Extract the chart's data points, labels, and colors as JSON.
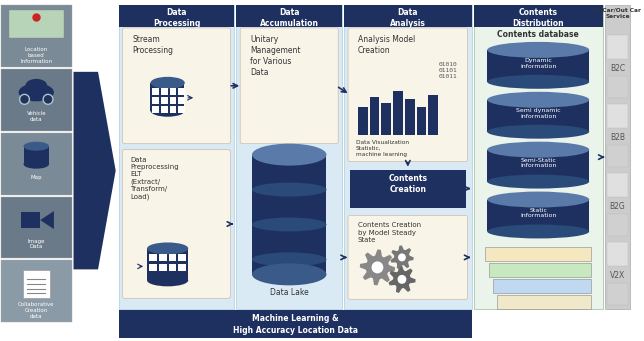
{
  "fig_width": 6.44,
  "fig_height": 3.41,
  "bg_color": "#ffffff",
  "navy": "#1e3060",
  "light_blue": "#daeaf5",
  "light_green": "#eaf4ea",
  "left_items": [
    "Location\nbased\nInformation",
    "Vehicle\ndata",
    "Map",
    "Image\nData",
    "Collaborative\nCreation\ndata"
  ],
  "left_colors": [
    "#7a8a96",
    "#6a7a88",
    "#7a8a96",
    "#6a7a88",
    "#8a9aa6"
  ],
  "col_titles": [
    "Data\nProcessing",
    "Data\nAccumulation",
    "Data\nAnalysis",
    "Contents\nDistribution"
  ],
  "bottom_label": "Machine Learning &\nHigh Accuracy Location Data",
  "db_labels": [
    "Dynamic\ninformation",
    "Semi dynamic\ninformation",
    "Semi-Static\ninformation",
    "Static\ninformation"
  ],
  "rp_items": [
    "B2C",
    "B2B",
    "B2G",
    "V2X"
  ]
}
